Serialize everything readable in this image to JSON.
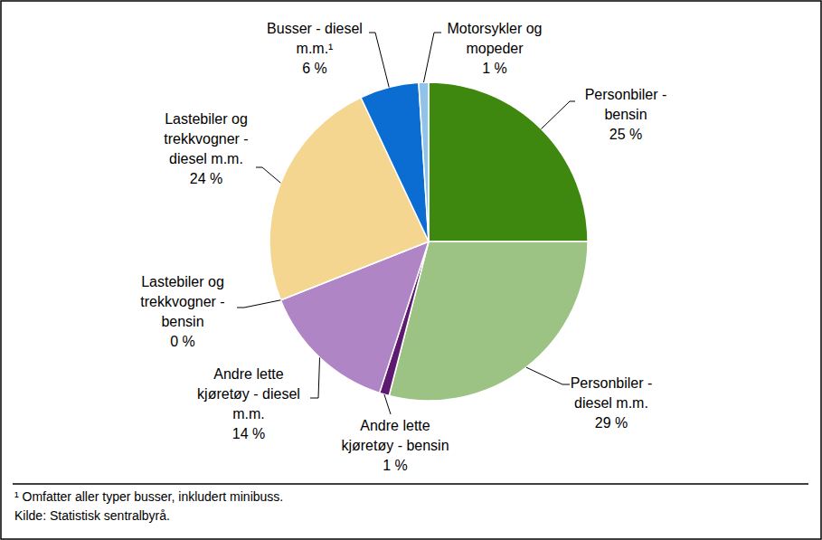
{
  "chart_data": {
    "type": "pie",
    "categories": [
      "Personbiler - bensin",
      "Personbiler - diesel m.m.",
      "Andre lette kjøretøy - bensin",
      "Andre lette kjøretøy - diesel m.m.",
      "Lastebiler og trekkvogner - bensin",
      "Lastebiler og trekkvogner - diesel m.m.",
      "Busser - diesel m.m.¹",
      "Motorsykler og mopeder"
    ],
    "values": [
      25,
      29,
      1,
      14,
      0,
      24,
      6,
      1
    ],
    "value_labels": [
      "25 %",
      "29 %",
      "1 %",
      "14 %",
      "0 %",
      "24 %",
      "6 %",
      "1 %"
    ],
    "colors": [
      "#3f880f",
      "#9dc384",
      "#5e1a70",
      "#b085c5",
      "#f4dca4",
      "#f4d691",
      "#0b6dd2",
      "#91c3ea"
    ],
    "data_labels": true,
    "footnote": "¹ Omfatter aller typer busser, inkludert minibuss.",
    "source": "Kilde: Statistisk sentralbyrå."
  }
}
